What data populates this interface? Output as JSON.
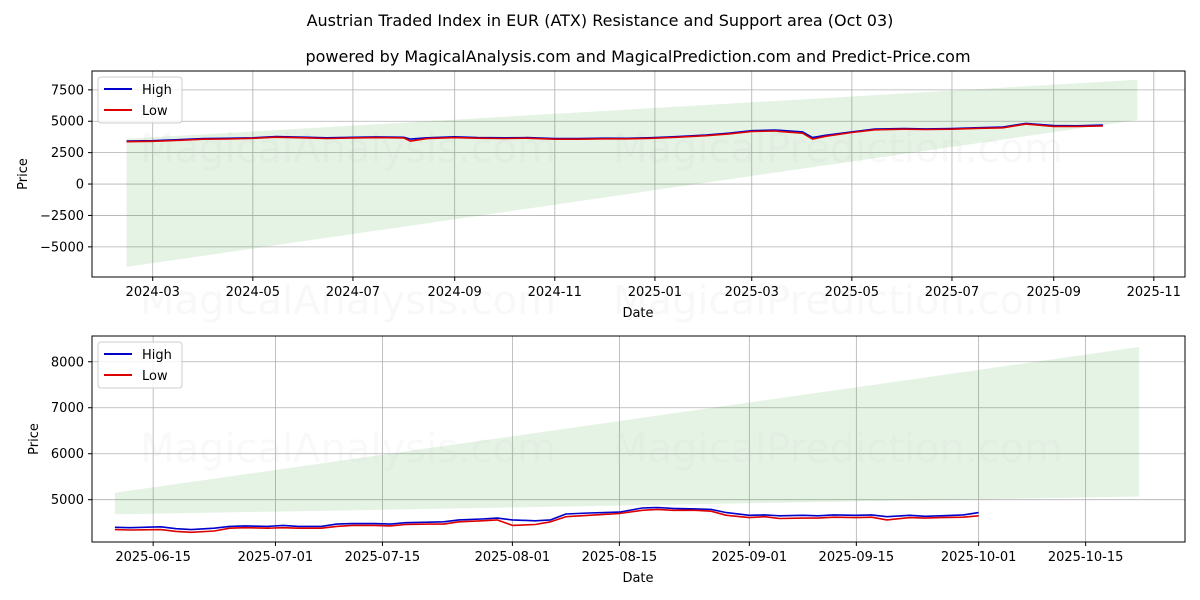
{
  "chart_data": [
    {
      "type": "line",
      "title": "Austrian Traded Index in EUR (ATX) Resistance and Support area (Oct 03)",
      "subtitle": "powered by MagicalAnalysis.com and MagicalPrediction.com and Predict-Price.com",
      "xlabel": "Date",
      "ylabel": "Price",
      "xlim": [
        "2024-01-24",
        "2025-11-20"
      ],
      "ylim": [
        -7400,
        9000
      ],
      "xticks": [
        "2024-03",
        "2024-05",
        "2024-07",
        "2024-09",
        "2024-11",
        "2025-01",
        "2025-03",
        "2025-05",
        "2025-07",
        "2025-09",
        "2025-11"
      ],
      "yticks": [
        -5000,
        -2500,
        0,
        2500,
        5000,
        7500
      ],
      "ytick_labels": [
        "−5000",
        "−2500",
        "0",
        "2500",
        "5000",
        "7500"
      ],
      "legend": {
        "position": "top-left",
        "entries": [
          "High",
          "Low"
        ]
      },
      "grid": true,
      "band": {
        "start_date": "2024-02-14",
        "end_date": "2025-10-22",
        "upper_start": 3600,
        "upper_end": 8300,
        "lower_start": -6600,
        "lower_end": 5100
      },
      "series": [
        {
          "name": "High",
          "color": "#0000cc",
          "x": [
            "2024-02-14",
            "2024-03-01",
            "2024-03-15",
            "2024-04-01",
            "2024-04-15",
            "2024-05-01",
            "2024-05-15",
            "2024-06-01",
            "2024-06-15",
            "2024-07-01",
            "2024-07-15",
            "2024-08-01",
            "2024-08-05",
            "2024-08-15",
            "2024-09-01",
            "2024-09-15",
            "2024-10-01",
            "2024-10-15",
            "2024-11-01",
            "2024-11-15",
            "2024-12-01",
            "2024-12-15",
            "2025-01-01",
            "2025-01-15",
            "2025-02-01",
            "2025-02-15",
            "2025-03-01",
            "2025-03-15",
            "2025-04-01",
            "2025-04-07",
            "2025-04-15",
            "2025-05-01",
            "2025-05-15",
            "2025-06-01",
            "2025-06-15",
            "2025-07-01",
            "2025-07-15",
            "2025-08-01",
            "2025-08-15",
            "2025-09-01",
            "2025-09-15",
            "2025-10-01"
          ],
          "values": [
            3420,
            3450,
            3520,
            3620,
            3640,
            3680,
            3780,
            3730,
            3680,
            3720,
            3750,
            3720,
            3580,
            3680,
            3760,
            3700,
            3680,
            3700,
            3620,
            3620,
            3650,
            3640,
            3700,
            3780,
            3900,
            4050,
            4250,
            4300,
            4150,
            3700,
            3880,
            4150,
            4380,
            4420,
            4390,
            4420,
            4480,
            4540,
            4830,
            4650,
            4640,
            4700
          ]
        },
        {
          "name": "Low",
          "color": "#dd0000",
          "x": [
            "2024-02-14",
            "2024-03-01",
            "2024-03-15",
            "2024-04-01",
            "2024-04-15",
            "2024-05-01",
            "2024-05-15",
            "2024-06-01",
            "2024-06-15",
            "2024-07-01",
            "2024-07-15",
            "2024-08-01",
            "2024-08-05",
            "2024-08-15",
            "2024-09-01",
            "2024-09-15",
            "2024-10-01",
            "2024-10-15",
            "2024-11-01",
            "2024-11-15",
            "2024-12-01",
            "2024-12-15",
            "2025-01-01",
            "2025-01-15",
            "2025-02-01",
            "2025-02-15",
            "2025-03-01",
            "2025-03-15",
            "2025-04-01",
            "2025-04-07",
            "2025-04-15",
            "2025-05-01",
            "2025-05-15",
            "2025-06-01",
            "2025-06-15",
            "2025-07-01",
            "2025-07-15",
            "2025-08-01",
            "2025-08-15",
            "2025-09-01",
            "2025-09-15",
            "2025-10-01"
          ],
          "values": [
            3370,
            3400,
            3470,
            3570,
            3590,
            3640,
            3730,
            3680,
            3630,
            3670,
            3700,
            3670,
            3420,
            3620,
            3700,
            3650,
            3630,
            3650,
            3570,
            3570,
            3600,
            3600,
            3650,
            3730,
            3850,
            3990,
            4180,
            4220,
            4050,
            3580,
            3800,
            4100,
            4320,
            4370,
            4340,
            4370,
            4430,
            4480,
            4770,
            4590,
            4590,
            4630
          ]
        }
      ]
    },
    {
      "type": "line",
      "xlabel": "Date",
      "ylabel": "Price",
      "xlim": [
        "2025-06-07",
        "2025-10-28"
      ],
      "ylim": [
        4080,
        8560
      ],
      "xticks": [
        "2025-06-15",
        "2025-07-01",
        "2025-07-15",
        "2025-08-01",
        "2025-08-15",
        "2025-09-01",
        "2025-09-15",
        "2025-10-01",
        "2025-10-15"
      ],
      "yticks": [
        5000,
        6000,
        7000,
        8000
      ],
      "ytick_labels": [
        "5000",
        "6000",
        "7000",
        "8000"
      ],
      "legend": {
        "position": "top-left",
        "entries": [
          "High",
          "Low"
        ]
      },
      "grid": true,
      "band": {
        "start_date": "2025-06-10",
        "end_date": "2025-10-22",
        "upper_start": 5150,
        "upper_end": 8320,
        "lower_start": 4680,
        "lower_end": 5070
      },
      "series": [
        {
          "name": "High",
          "color": "#0000cc",
          "x": [
            "2025-06-10",
            "2025-06-12",
            "2025-06-16",
            "2025-06-18",
            "2025-06-20",
            "2025-06-23",
            "2025-06-25",
            "2025-06-27",
            "2025-06-30",
            "2025-07-02",
            "2025-07-04",
            "2025-07-07",
            "2025-07-09",
            "2025-07-11",
            "2025-07-14",
            "2025-07-16",
            "2025-07-18",
            "2025-07-21",
            "2025-07-23",
            "2025-07-25",
            "2025-07-28",
            "2025-07-30",
            "2025-08-01",
            "2025-08-04",
            "2025-08-06",
            "2025-08-08",
            "2025-08-11",
            "2025-08-13",
            "2025-08-15",
            "2025-08-18",
            "2025-08-20",
            "2025-08-22",
            "2025-08-25",
            "2025-08-27",
            "2025-08-29",
            "2025-09-01",
            "2025-09-03",
            "2025-09-05",
            "2025-09-08",
            "2025-09-10",
            "2025-09-12",
            "2025-09-15",
            "2025-09-17",
            "2025-09-19",
            "2025-09-22",
            "2025-09-24",
            "2025-09-26",
            "2025-09-29",
            "2025-10-01"
          ],
          "values": [
            4400,
            4390,
            4410,
            4370,
            4350,
            4380,
            4420,
            4430,
            4420,
            4440,
            4420,
            4420,
            4470,
            4480,
            4480,
            4470,
            4500,
            4510,
            4520,
            4560,
            4580,
            4600,
            4560,
            4540,
            4560,
            4690,
            4710,
            4720,
            4730,
            4820,
            4830,
            4810,
            4800,
            4790,
            4720,
            4660,
            4670,
            4650,
            4660,
            4650,
            4670,
            4660,
            4670,
            4630,
            4660,
            4640,
            4650,
            4670,
            4720
          ]
        },
        {
          "name": "Low",
          "color": "#dd0000",
          "x": [
            "2025-06-10",
            "2025-06-12",
            "2025-06-16",
            "2025-06-18",
            "2025-06-20",
            "2025-06-23",
            "2025-06-25",
            "2025-06-27",
            "2025-06-30",
            "2025-07-02",
            "2025-07-04",
            "2025-07-07",
            "2025-07-09",
            "2025-07-11",
            "2025-07-14",
            "2025-07-16",
            "2025-07-18",
            "2025-07-21",
            "2025-07-23",
            "2025-07-25",
            "2025-07-28",
            "2025-07-30",
            "2025-08-01",
            "2025-08-04",
            "2025-08-06",
            "2025-08-08",
            "2025-08-11",
            "2025-08-13",
            "2025-08-15",
            "2025-08-18",
            "2025-08-20",
            "2025-08-22",
            "2025-08-25",
            "2025-08-27",
            "2025-08-29",
            "2025-09-01",
            "2025-09-03",
            "2025-09-05",
            "2025-09-08",
            "2025-09-10",
            "2025-09-12",
            "2025-09-15",
            "2025-09-17",
            "2025-09-19",
            "2025-09-22",
            "2025-09-24",
            "2025-09-26",
            "2025-09-29",
            "2025-10-01"
          ],
          "values": [
            4350,
            4340,
            4350,
            4310,
            4290,
            4320,
            4380,
            4390,
            4380,
            4390,
            4380,
            4380,
            4420,
            4440,
            4440,
            4430,
            4460,
            4470,
            4470,
            4520,
            4540,
            4560,
            4440,
            4460,
            4520,
            4630,
            4660,
            4680,
            4700,
            4770,
            4790,
            4770,
            4770,
            4750,
            4660,
            4610,
            4630,
            4590,
            4600,
            4600,
            4620,
            4610,
            4620,
            4560,
            4610,
            4600,
            4610,
            4620,
            4650
          ]
        }
      ]
    }
  ],
  "watermark": {
    "left": "MagicalAnalysis.com",
    "right": "MagicalPrediction.com"
  }
}
